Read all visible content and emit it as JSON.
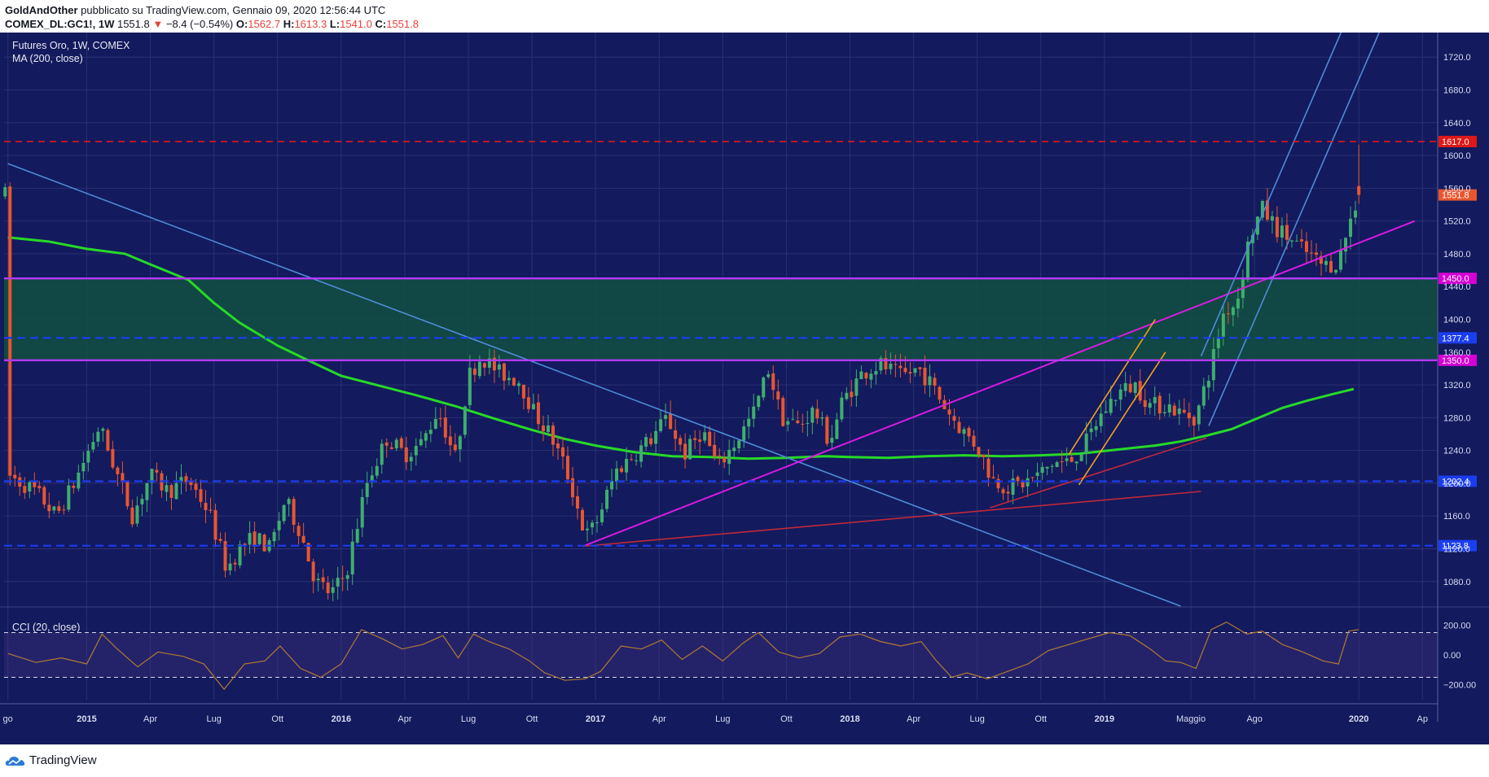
{
  "header": {
    "author": "GoldAndOther",
    "published_on": "pubblicato su TradingView.com, Gennaio 09, 2020 12:56:44 UTC",
    "symbol": "COMEX_DL:GC1!, 1W",
    "last": "1551.8",
    "change": "−8.4 (−0.54%)",
    "o_label": "O:",
    "o_value": "1562.7",
    "h_label": "H:",
    "h_value": "1613.3",
    "l_label": "L:",
    "l_value": "1541.0",
    "c_label": "C:",
    "c_value": "1551.8"
  },
  "footer": {
    "brand": "TradingView"
  },
  "colors": {
    "background": "#131a5e",
    "up": "#3fae6e",
    "down": "#e8562f",
    "ma": "#27d927",
    "magenta": "#d81be0",
    "purple": "#b23bff",
    "blue_line": "#4f8bd6",
    "orange": "#f0a020",
    "darkred": "#c0283b",
    "zone": "#12503f",
    "cci": "#b07a30"
  },
  "chart_data": {
    "type": "candlestick",
    "title": "Futures Oro, 1W, COMEX",
    "indicator_label": "MA (200, close)",
    "price_axis": {
      "ylim": [
        1050,
        1750
      ],
      "ticks": [
        1080,
        1120,
        1160,
        1200,
        1240,
        1280,
        1320,
        1360,
        1400,
        1440,
        1480,
        1520,
        1560,
        1600,
        1640,
        1680,
        1720
      ],
      "tick_labels": [
        "1080.0",
        "1120.0",
        "1160.0",
        "1200.0",
        "1240.0",
        "1280.0",
        "1320.0",
        "1360.0",
        "1400.0",
        "1440.0",
        "1480.0",
        "1520.0",
        "1560.0",
        "1600.0",
        "1640.0",
        "1680.0",
        "1720.0"
      ]
    },
    "time_axis": {
      "labels": [
        {
          "text": "go",
          "t": 2014.69,
          "bold": false
        },
        {
          "text": "2015",
          "t": 2015.0,
          "bold": true
        },
        {
          "text": "Apr",
          "t": 2015.25,
          "bold": false
        },
        {
          "text": "Lug",
          "t": 2015.5,
          "bold": false
        },
        {
          "text": "Ott",
          "t": 2015.75,
          "bold": false
        },
        {
          "text": "2016",
          "t": 2016.0,
          "bold": true
        },
        {
          "text": "Apr",
          "t": 2016.25,
          "bold": false
        },
        {
          "text": "Lug",
          "t": 2016.5,
          "bold": false
        },
        {
          "text": "Ott",
          "t": 2016.75,
          "bold": false
        },
        {
          "text": "2017",
          "t": 2017.0,
          "bold": true
        },
        {
          "text": "Apr",
          "t": 2017.25,
          "bold": false
        },
        {
          "text": "Lug",
          "t": 2017.5,
          "bold": false
        },
        {
          "text": "Ott",
          "t": 2017.75,
          "bold": false
        },
        {
          "text": "2018",
          "t": 2018.0,
          "bold": true
        },
        {
          "text": "Apr",
          "t": 2018.25,
          "bold": false
        },
        {
          "text": "Lug",
          "t": 2018.5,
          "bold": false
        },
        {
          "text": "Ott",
          "t": 2018.75,
          "bold": false
        },
        {
          "text": "2019",
          "t": 2019.0,
          "bold": true
        },
        {
          "text": "Maggio",
          "t": 2019.34,
          "bold": false
        },
        {
          "text": "Ago",
          "t": 2019.59,
          "bold": false
        },
        {
          "text": "2020",
          "t": 2020.0,
          "bold": true
        },
        {
          "text": "Ap",
          "t": 2020.25,
          "bold": false
        }
      ]
    },
    "price_path": [
      [
        2014.69,
        1210
      ],
      [
        2014.8,
        1190
      ],
      [
        2014.88,
        1160
      ],
      [
        2014.95,
        1200
      ],
      [
        2015.05,
        1270
      ],
      [
        2015.12,
        1210
      ],
      [
        2015.18,
        1160
      ],
      [
        2015.25,
        1210
      ],
      [
        2015.32,
        1190
      ],
      [
        2015.4,
        1205
      ],
      [
        2015.48,
        1165
      ],
      [
        2015.55,
        1095
      ],
      [
        2015.6,
        1120
      ],
      [
        2015.66,
        1135
      ],
      [
        2015.72,
        1120
      ],
      [
        2015.78,
        1180
      ],
      [
        2015.84,
        1140
      ],
      [
        2015.9,
        1080
      ],
      [
        2015.96,
        1065
      ],
      [
        2016.02,
        1090
      ],
      [
        2016.1,
        1200
      ],
      [
        2016.18,
        1255
      ],
      [
        2016.25,
        1235
      ],
      [
        2016.32,
        1250
      ],
      [
        2016.38,
        1290
      ],
      [
        2016.45,
        1230
      ],
      [
        2016.5,
        1330
      ],
      [
        2016.55,
        1355
      ],
      [
        2016.62,
        1335
      ],
      [
        2016.7,
        1325
      ],
      [
        2016.76,
        1285
      ],
      [
        2016.82,
        1260
      ],
      [
        2016.88,
        1220
      ],
      [
        2016.92,
        1180
      ],
      [
        2016.96,
        1135
      ],
      [
        2017.0,
        1150
      ],
      [
        2017.08,
        1215
      ],
      [
        2017.15,
        1235
      ],
      [
        2017.22,
        1255
      ],
      [
        2017.28,
        1280
      ],
      [
        2017.35,
        1235
      ],
      [
        2017.42,
        1265
      ],
      [
        2017.48,
        1220
      ],
      [
        2017.55,
        1250
      ],
      [
        2017.62,
        1285
      ],
      [
        2017.68,
        1340
      ],
      [
        2017.73,
        1280
      ],
      [
        2017.8,
        1270
      ],
      [
        2017.86,
        1290
      ],
      [
        2017.92,
        1250
      ],
      [
        2017.97,
        1300
      ],
      [
        2018.05,
        1335
      ],
      [
        2018.12,
        1345
      ],
      [
        2018.2,
        1330
      ],
      [
        2018.27,
        1340
      ],
      [
        2018.32,
        1320
      ],
      [
        2018.38,
        1290
      ],
      [
        2018.44,
        1265
      ],
      [
        2018.5,
        1245
      ],
      [
        2018.56,
        1205
      ],
      [
        2018.62,
        1195
      ],
      [
        2018.68,
        1200
      ],
      [
        2018.74,
        1210
      ],
      [
        2018.8,
        1225
      ],
      [
        2018.86,
        1225
      ],
      [
        2018.92,
        1245
      ],
      [
        2018.98,
        1280
      ],
      [
        2019.05,
        1310
      ],
      [
        2019.12,
        1320
      ],
      [
        2019.18,
        1295
      ],
      [
        2019.25,
        1295
      ],
      [
        2019.3,
        1285
      ],
      [
        2019.36,
        1280
      ],
      [
        2019.42,
        1345
      ],
      [
        2019.47,
        1410
      ],
      [
        2019.52,
        1420
      ],
      [
        2019.57,
        1500
      ],
      [
        2019.62,
        1535
      ],
      [
        2019.68,
        1510
      ],
      [
        2019.74,
        1495
      ],
      [
        2019.8,
        1480
      ],
      [
        2019.86,
        1465
      ],
      [
        2019.92,
        1470
      ],
      [
        2019.96,
        1515
      ],
      [
        2020.0,
        1552
      ]
    ],
    "ma200": [
      [
        2014.69,
        1500
      ],
      [
        2014.85,
        1495
      ],
      [
        2015.0,
        1486
      ],
      [
        2015.15,
        1480
      ],
      [
        2015.25,
        1467
      ],
      [
        2015.4,
        1448
      ],
      [
        2015.5,
        1420
      ],
      [
        2015.6,
        1396
      ],
      [
        2015.75,
        1368
      ],
      [
        2015.87,
        1350
      ],
      [
        2016.0,
        1331
      ],
      [
        2016.15,
        1319
      ],
      [
        2016.3,
        1307
      ],
      [
        2016.45,
        1294
      ],
      [
        2016.6,
        1279
      ],
      [
        2016.75,
        1265
      ],
      [
        2016.88,
        1254
      ],
      [
        2017.0,
        1246
      ],
      [
        2017.15,
        1238
      ],
      [
        2017.3,
        1233
      ],
      [
        2017.45,
        1232
      ],
      [
        2017.6,
        1230
      ],
      [
        2017.75,
        1231
      ],
      [
        2017.9,
        1233
      ],
      [
        2018.0,
        1232
      ],
      [
        2018.15,
        1231
      ],
      [
        2018.3,
        1233
      ],
      [
        2018.45,
        1234
      ],
      [
        2018.6,
        1233
      ],
      [
        2018.75,
        1234
      ],
      [
        2018.9,
        1236
      ],
      [
        2019.05,
        1241
      ],
      [
        2019.2,
        1246
      ],
      [
        2019.3,
        1251
      ],
      [
        2019.4,
        1258
      ],
      [
        2019.5,
        1266
      ],
      [
        2019.6,
        1279
      ],
      [
        2019.7,
        1292
      ],
      [
        2019.8,
        1301
      ],
      [
        2019.9,
        1309
      ],
      [
        2019.98,
        1315
      ]
    ],
    "cci_path": [
      [
        2014.69,
        10
      ],
      [
        2014.8,
        -50
      ],
      [
        2014.9,
        -20
      ],
      [
        2015.0,
        -60
      ],
      [
        2015.06,
        140
      ],
      [
        2015.12,
        40
      ],
      [
        2015.2,
        -80
      ],
      [
        2015.28,
        20
      ],
      [
        2015.38,
        -10
      ],
      [
        2015.46,
        -60
      ],
      [
        2015.54,
        -230
      ],
      [
        2015.62,
        -60
      ],
      [
        2015.7,
        -40
      ],
      [
        2015.76,
        60
      ],
      [
        2015.84,
        -90
      ],
      [
        2015.92,
        -150
      ],
      [
        2016.0,
        -60
      ],
      [
        2016.08,
        170
      ],
      [
        2016.16,
        110
      ],
      [
        2016.24,
        40
      ],
      [
        2016.32,
        70
      ],
      [
        2016.4,
        130
      ],
      [
        2016.46,
        -20
      ],
      [
        2016.52,
        140
      ],
      [
        2016.58,
        90
      ],
      [
        2016.66,
        40
      ],
      [
        2016.74,
        -40
      ],
      [
        2016.8,
        -120
      ],
      [
        2016.88,
        -170
      ],
      [
        2016.96,
        -160
      ],
      [
        2017.02,
        -110
      ],
      [
        2017.1,
        60
      ],
      [
        2017.18,
        40
      ],
      [
        2017.26,
        100
      ],
      [
        2017.34,
        -30
      ],
      [
        2017.42,
        60
      ],
      [
        2017.5,
        -40
      ],
      [
        2017.58,
        80
      ],
      [
        2017.64,
        150
      ],
      [
        2017.72,
        20
      ],
      [
        2017.8,
        -20
      ],
      [
        2017.88,
        10
      ],
      [
        2017.96,
        120
      ],
      [
        2018.04,
        140
      ],
      [
        2018.12,
        90
      ],
      [
        2018.2,
        60
      ],
      [
        2018.28,
        90
      ],
      [
        2018.34,
        -40
      ],
      [
        2018.4,
        -150
      ],
      [
        2018.46,
        -120
      ],
      [
        2018.54,
        -160
      ],
      [
        2018.62,
        -110
      ],
      [
        2018.7,
        -60
      ],
      [
        2018.78,
        30
      ],
      [
        2018.86,
        70
      ],
      [
        2018.94,
        110
      ],
      [
        2019.02,
        150
      ],
      [
        2019.1,
        130
      ],
      [
        2019.18,
        40
      ],
      [
        2019.24,
        -40
      ],
      [
        2019.3,
        -50
      ],
      [
        2019.36,
        -90
      ],
      [
        2019.42,
        170
      ],
      [
        2019.48,
        220
      ],
      [
        2019.56,
        140
      ],
      [
        2019.62,
        160
      ],
      [
        2019.7,
        70
      ],
      [
        2019.78,
        20
      ],
      [
        2019.86,
        -40
      ],
      [
        2019.92,
        -60
      ],
      [
        2019.96,
        160
      ],
      [
        2020.0,
        170
      ]
    ],
    "cci": {
      "label": "CCI (20, close)",
      "ylim": [
        -300,
        300
      ],
      "ticks": [
        200,
        0,
        -200
      ],
      "tick_labels": [
        "200.00",
        "0.00",
        "−200.00"
      ],
      "bands": [
        150,
        -150
      ]
    },
    "levels": [
      {
        "price": 1617.0,
        "label": "1617.0",
        "style": "red-dashed",
        "badge": "#e01818"
      },
      {
        "price": 1450.0,
        "label": "1450.0",
        "style": "purple-solid",
        "badge": "#d400d4"
      },
      {
        "price": 1377.4,
        "label": "1377.4",
        "style": "blue-dashed",
        "badge": "#1b3df0"
      },
      {
        "price": 1350.0,
        "label": "1350.0",
        "style": "purple-solid",
        "badge": "#d400d4"
      },
      {
        "price": 1202.4,
        "label": "1202.4",
        "style": "blue-dashed",
        "badge": "#1b3df0"
      },
      {
        "price": 1123.8,
        "label": "1123.8",
        "style": "blue-dashed",
        "badge": "#1b3df0"
      }
    ],
    "last_price": {
      "price": 1551.8,
      "label": "1551.8",
      "badge": "#e8562f"
    },
    "zone": {
      "from": 1350,
      "to": 1450
    },
    "trendlines": [
      {
        "name": "long-downtrend",
        "color": "#4f8bd6",
        "x1": 2014.69,
        "y1": 1590,
        "x2": 2019.3,
        "y2": 1050
      },
      {
        "name": "magenta-support",
        "color": "#d81be0",
        "x1": 2016.95,
        "y1": 1123,
        "x2": 2020.22,
        "y2": 1520
      },
      {
        "name": "red-support",
        "color": "#c0283b",
        "x1": 2016.95,
        "y1": 1123,
        "x2": 2019.38,
        "y2": 1190
      },
      {
        "name": "red-support-2",
        "color": "#c0283b",
        "x1": 2018.55,
        "y1": 1170,
        "x2": 2019.4,
        "y2": 1255
      },
      {
        "name": "orange-channel-upper",
        "color": "#f0a020",
        "x1": 2018.86,
        "y1": 1235,
        "x2": 2019.2,
        "y2": 1400
      },
      {
        "name": "orange-channel-lower",
        "color": "#f0a020",
        "x1": 2018.9,
        "y1": 1198,
        "x2": 2019.24,
        "y2": 1360
      },
      {
        "name": "blue-channel-upper",
        "color": "#4f8bd6",
        "x1": 2019.38,
        "y1": 1355,
        "x2": 2019.93,
        "y2": 1750
      },
      {
        "name": "blue-channel-lower",
        "color": "#4f8bd6",
        "x1": 2019.41,
        "y1": 1270,
        "x2": 2020.08,
        "y2": 1750
      }
    ]
  }
}
